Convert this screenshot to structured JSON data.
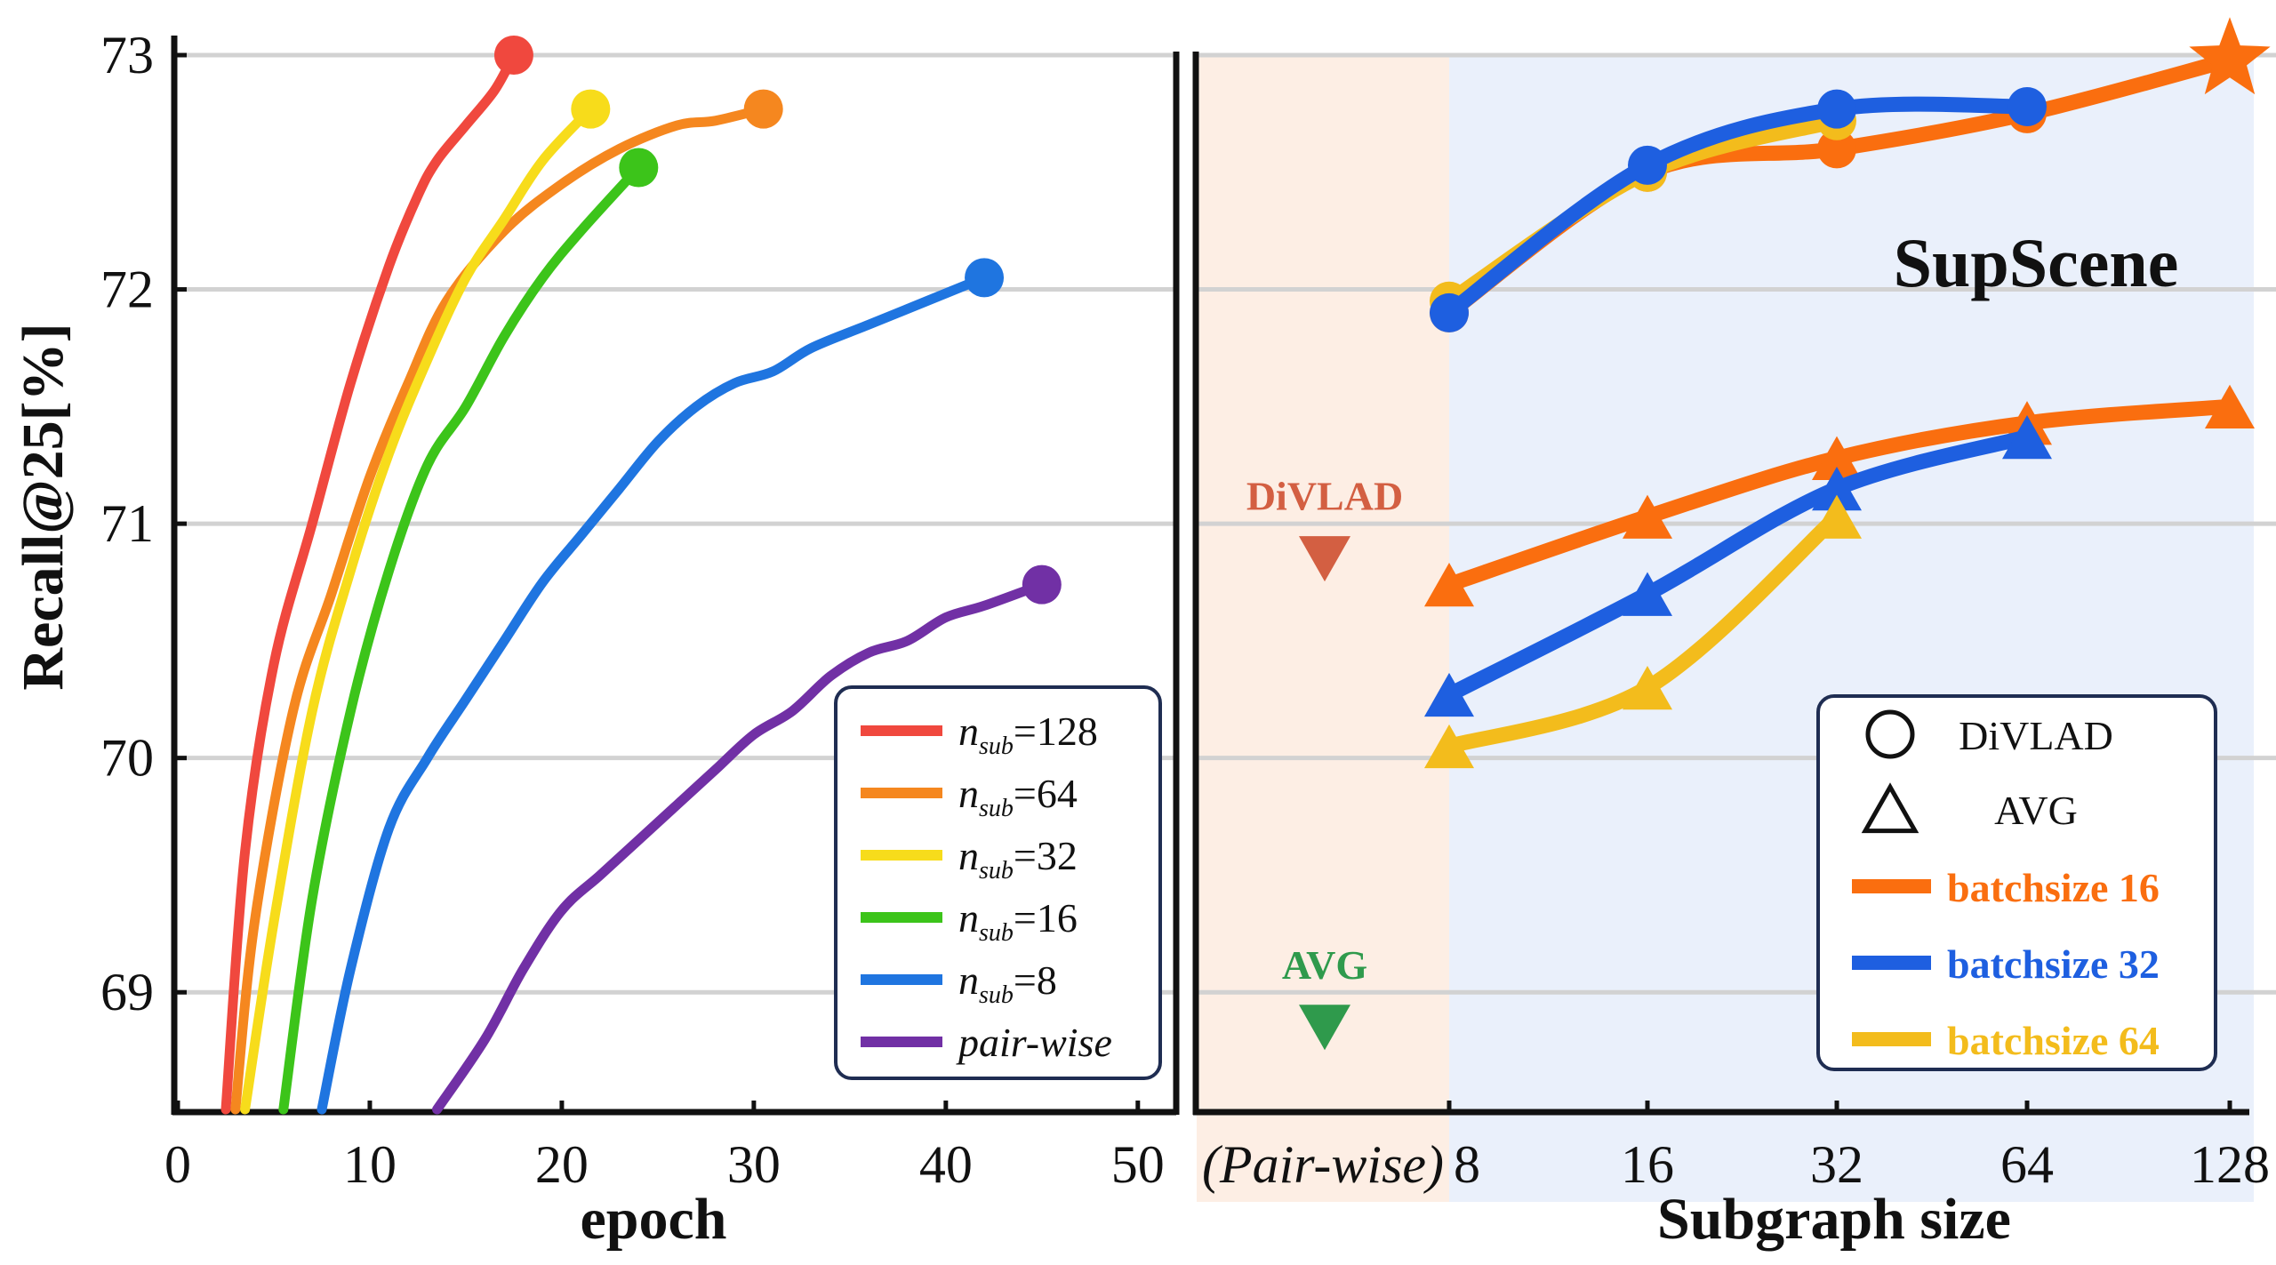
{
  "chart_data": [
    {
      "type": "line",
      "panel": "left",
      "xlabel": "epoch",
      "ylabel": "Recall@25[%]",
      "xlim": [
        0,
        52
      ],
      "ylim": [
        68.5,
        73
      ],
      "xticks": [
        "0",
        "10",
        "20",
        "30",
        "40",
        "50"
      ],
      "yticks": [
        "69",
        "70",
        "71",
        "72",
        "73"
      ],
      "grid": "horizontal",
      "legend_position": "bottom-right",
      "series": [
        {
          "name": "n_sub=128",
          "legend_var": "n",
          "legend_sub": "sub",
          "legend_value": "=128",
          "color": "#f0483e",
          "x": [
            2.5,
            3.5,
            5,
            7,
            9,
            11,
            12.5,
            13.5,
            15,
            16.5,
            17.5
          ],
          "y": [
            68.5,
            69.6,
            70.4,
            71.0,
            71.6,
            72.1,
            72.4,
            72.55,
            72.7,
            72.85,
            73.0
          ]
        },
        {
          "name": "n_sub=64",
          "legend_var": "n",
          "legend_sub": "sub",
          "legend_value": "=64",
          "color": "#f5871f",
          "x": [
            3,
            4,
            6,
            8,
            10,
            12,
            14,
            17,
            20,
            23,
            26,
            28,
            30.5
          ],
          "y": [
            68.5,
            69.3,
            70.2,
            70.7,
            71.2,
            71.6,
            71.95,
            72.25,
            72.45,
            72.6,
            72.7,
            72.72,
            72.77
          ]
        },
        {
          "name": "n_sub=32",
          "legend_var": "n",
          "legend_sub": "sub",
          "legend_value": "=32",
          "color": "#f7dc1b",
          "x": [
            3.5,
            5,
            7,
            9,
            11,
            13,
            15,
            17,
            19,
            21.5
          ],
          "y": [
            68.5,
            69.3,
            70.2,
            70.8,
            71.3,
            71.7,
            72.05,
            72.3,
            72.55,
            72.77
          ]
        },
        {
          "name": "n_sub=16",
          "legend_var": "n",
          "legend_sub": "sub",
          "legend_value": "=16",
          "color": "#3cc41a",
          "x": [
            5.5,
            7,
            9,
            11,
            13,
            15,
            17,
            19,
            21,
            24
          ],
          "y": [
            68.5,
            69.4,
            70.2,
            70.8,
            71.25,
            71.5,
            71.8,
            72.05,
            72.25,
            72.52
          ]
        },
        {
          "name": "n_sub=8",
          "legend_var": "n",
          "legend_sub": "sub",
          "legend_value": "=8",
          "color": "#1f75e0",
          "x": [
            7.5,
            9,
            11,
            13,
            15,
            17,
            19,
            21,
            23,
            25,
            27,
            29,
            31,
            33,
            36,
            39,
            42
          ],
          "y": [
            68.5,
            69.1,
            69.7,
            70.0,
            70.25,
            70.5,
            70.75,
            70.95,
            71.15,
            71.35,
            71.5,
            71.6,
            71.65,
            71.75,
            71.85,
            71.95,
            72.05
          ]
        },
        {
          "name": "pair-wise",
          "legend_var": "pair-wise",
          "legend_sub": "",
          "legend_value": "",
          "color": "#7130a5",
          "x": [
            13.5,
            16,
            18,
            20,
            22,
            24,
            26,
            28,
            30,
            32,
            34,
            36,
            38,
            40,
            42,
            45
          ],
          "y": [
            68.5,
            68.8,
            69.1,
            69.35,
            69.5,
            69.65,
            69.8,
            69.95,
            70.1,
            70.2,
            70.35,
            70.45,
            70.5,
            70.6,
            70.65,
            70.74
          ]
        }
      ]
    },
    {
      "type": "line",
      "panel": "right",
      "title": "SupScene",
      "xlabel": "Subgraph size",
      "ylim": [
        68.5,
        73
      ],
      "xcategories": [
        "(Pair-wise)",
        "8",
        "16",
        "32",
        "64",
        "128"
      ],
      "regions": [
        {
          "name": "pair-wise region",
          "from": "(Pair-wise)",
          "to": "8",
          "color": "#fdeee4"
        },
        {
          "name": "subgraph region",
          "from": "8",
          "to": "128",
          "color": "#eaf0fb"
        }
      ],
      "reference_points": [
        {
          "label": "DiVLAD",
          "x": "(Pair-wise)",
          "y": 70.85,
          "color": "#d35f42"
        },
        {
          "label": "AVG",
          "x": "(Pair-wise)",
          "y": 68.85,
          "color": "#2f9a4c"
        }
      ],
      "legend_position": "bottom-right",
      "legend": {
        "markers": [
          {
            "shape": "circle",
            "label": "DiVLAD"
          },
          {
            "shape": "triangle",
            "label": "AVG"
          }
        ],
        "series": [
          {
            "label": "batchsize 16",
            "color": "#fa6e0f"
          },
          {
            "label": "batchsize 32",
            "color": "#1e5fe0"
          },
          {
            "label": "batchsize 64",
            "color": "#f3bc1c"
          }
        ]
      },
      "series": [
        {
          "name": "DiVLAD batchsize 16",
          "marker": "circle",
          "color": "#fa6e0f",
          "x": [
            "8",
            "16",
            "32",
            "64",
            "128"
          ],
          "y": [
            71.9,
            72.5,
            72.6,
            72.75,
            72.98
          ],
          "last_marker": "star"
        },
        {
          "name": "DiVLAD batchsize 64",
          "marker": "circle",
          "color": "#f3bc1c",
          "x": [
            "8",
            "16",
            "32"
          ],
          "y": [
            71.95,
            72.5,
            72.72
          ]
        },
        {
          "name": "DiVLAD batchsize 32",
          "marker": "circle",
          "color": "#1e5fe0",
          "x": [
            "8",
            "16",
            "32",
            "64"
          ],
          "y": [
            71.9,
            72.53,
            72.77,
            72.78
          ]
        },
        {
          "name": "AVG batchsize 16",
          "marker": "triangle",
          "color": "#fa6e0f",
          "x": [
            "8",
            "16",
            "32",
            "64",
            "128"
          ],
          "y": [
            70.74,
            71.03,
            71.28,
            71.43,
            71.5
          ]
        },
        {
          "name": "AVG batchsize 32",
          "marker": "triangle",
          "color": "#1e5fe0",
          "x": [
            "8",
            "16",
            "32",
            "64"
          ],
          "y": [
            70.27,
            70.7,
            71.15,
            71.37
          ]
        },
        {
          "name": "AVG batchsize 64",
          "marker": "triangle",
          "color": "#f3bc1c",
          "x": [
            "8",
            "16",
            "32"
          ],
          "y": [
            70.05,
            70.3,
            71.03
          ]
        }
      ]
    }
  ]
}
